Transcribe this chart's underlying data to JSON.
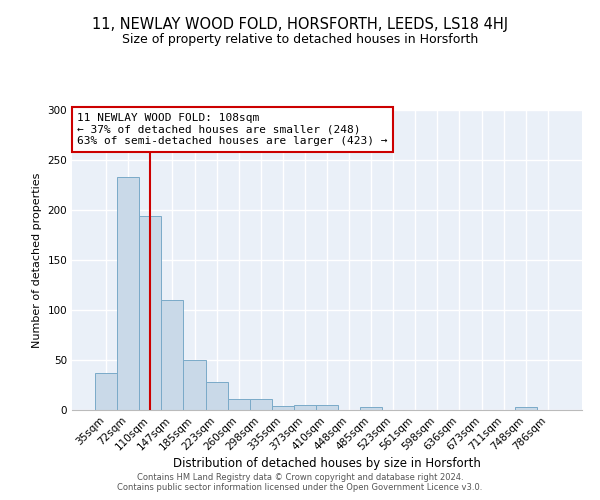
{
  "title": "11, NEWLAY WOOD FOLD, HORSFORTH, LEEDS, LS18 4HJ",
  "subtitle": "Size of property relative to detached houses in Horsforth",
  "xlabel": "Distribution of detached houses by size in Horsforth",
  "ylabel": "Number of detached properties",
  "categories": [
    "35sqm",
    "72sqm",
    "110sqm",
    "147sqm",
    "185sqm",
    "223sqm",
    "260sqm",
    "298sqm",
    "335sqm",
    "373sqm",
    "410sqm",
    "448sqm",
    "485sqm",
    "523sqm",
    "561sqm",
    "598sqm",
    "636sqm",
    "673sqm",
    "711sqm",
    "748sqm",
    "786sqm"
  ],
  "values": [
    37,
    233,
    194,
    110,
    50,
    28,
    11,
    11,
    4,
    5,
    5,
    0,
    3,
    0,
    0,
    0,
    0,
    0,
    0,
    3,
    0
  ],
  "bar_color": "#c9d9e8",
  "bar_edgecolor": "#7aaac8",
  "property_line_x": 2.0,
  "annotation_text": "11 NEWLAY WOOD FOLD: 108sqm\n← 37% of detached houses are smaller (248)\n63% of semi-detached houses are larger (423) →",
  "annotation_box_color": "#ffffff",
  "annotation_box_edgecolor": "#cc0000",
  "vline_color": "#cc0000",
  "ylim": [
    0,
    300
  ],
  "yticks": [
    0,
    50,
    100,
    150,
    200,
    250,
    300
  ],
  "background_color": "#eaf0f8",
  "footer_line1": "Contains HM Land Registry data © Crown copyright and database right 2024.",
  "footer_line2": "Contains public sector information licensed under the Open Government Licence v3.0.",
  "title_fontsize": 10.5,
  "subtitle_fontsize": 9,
  "ylabel_fontsize": 8,
  "xlabel_fontsize": 8.5,
  "tick_fontsize": 7.5,
  "annotation_fontsize": 8,
  "footer_fontsize": 6
}
